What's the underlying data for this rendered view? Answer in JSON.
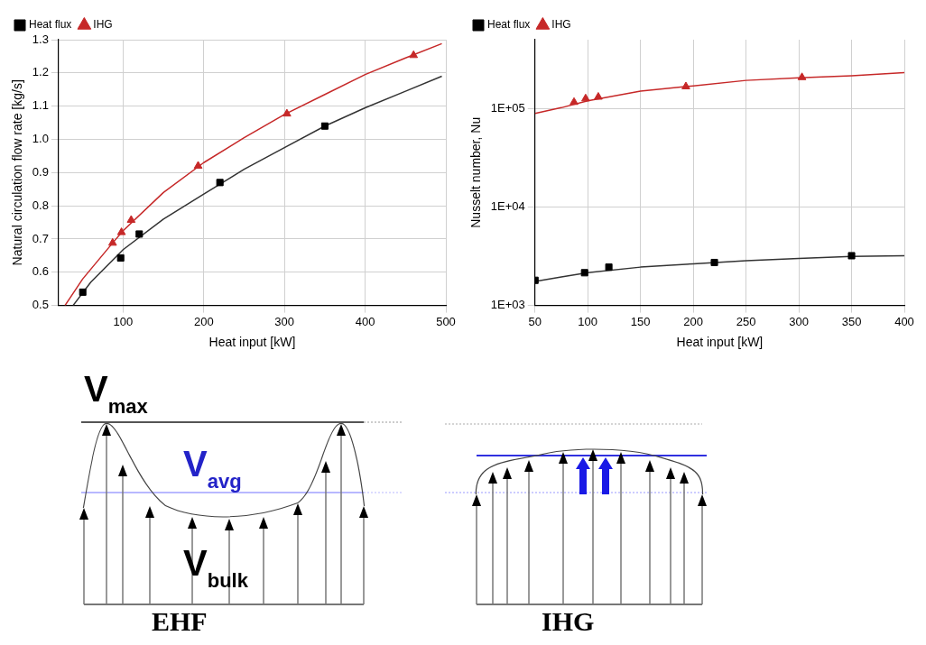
{
  "chart_data": [
    {
      "type": "scatter",
      "xlabel": "Heat input [kW]",
      "ylabel": "Natural circulation flow rate [kg/s]",
      "xlim": [
        20,
        500
      ],
      "xticks": [
        100,
        200,
        300,
        400,
        500
      ],
      "ylim": [
        0.5,
        1.3
      ],
      "yticks": [
        {
          "value": 0.5,
          "label": "0.5"
        },
        {
          "value": 0.6,
          "label": "0.6"
        },
        {
          "value": 0.7,
          "label": "0.7"
        },
        {
          "value": 0.8,
          "label": "0.8"
        },
        {
          "value": 0.9,
          "label": "0.9"
        },
        {
          "value": 1.0,
          "label": "1.0"
        },
        {
          "value": 1.1,
          "label": "1.1"
        },
        {
          "value": 1.2,
          "label": "1.2"
        },
        {
          "value": 1.3,
          "label": "1.3"
        }
      ],
      "grid": true,
      "legend": "top left",
      "series": [
        {
          "name": "Heat flux",
          "type": "scatter",
          "marker": "square",
          "color": "#000000",
          "x": [
            50,
            97,
            120,
            220,
            350
          ],
          "values": [
            0.54,
            0.643,
            0.715,
            0.87,
            1.04
          ]
        },
        {
          "name": "IHG",
          "type": "scatter",
          "marker": "triangle",
          "color": "#c62828",
          "x": [
            87,
            98,
            110,
            193,
            303,
            460
          ],
          "values": [
            0.688,
            0.72,
            0.757,
            0.92,
            1.077,
            1.253
          ]
        },
        {
          "type": "line",
          "color": "#333333",
          "x": [
            38,
            60,
            100,
            150,
            200,
            250,
            300,
            350,
            400,
            450,
            495
          ],
          "values": [
            0.5,
            0.57,
            0.668,
            0.76,
            0.835,
            0.91,
            0.975,
            1.04,
            1.095,
            1.145,
            1.19
          ]
        },
        {
          "type": "line",
          "color": "#c62828",
          "x": [
            28,
            50,
            87,
            100,
            150,
            200,
            250,
            300,
            350,
            400,
            450,
            495
          ],
          "values": [
            0.5,
            0.58,
            0.688,
            0.725,
            0.84,
            0.93,
            1.005,
            1.075,
            1.135,
            1.195,
            1.245,
            1.288
          ]
        }
      ]
    },
    {
      "type": "scatter",
      "xlabel": "Heat input [kW]",
      "ylabel": "Nusselt number, Nu",
      "log": "y",
      "xlim": [
        50,
        400
      ],
      "xticks": [
        50,
        100,
        150,
        200,
        250,
        300,
        350,
        400
      ],
      "ylim": [
        1000,
        500000
      ],
      "yticks": [
        {
          "value": 1000,
          "label": "1E+03"
        },
        {
          "value": 10000,
          "label": "1E+04"
        },
        {
          "value": 100000,
          "label": "1E+05"
        }
      ],
      "grid": true,
      "legend": "top left",
      "series": [
        {
          "name": "Heat flux",
          "type": "scatter",
          "marker": "square",
          "color": "#000000",
          "x": [
            50,
            97,
            120,
            220,
            350
          ],
          "values": [
            1800,
            2150,
            2450,
            2730,
            3200
          ]
        },
        {
          "name": "IHG",
          "type": "scatter",
          "marker": "triangle",
          "color": "#c62828",
          "x": [
            87,
            98,
            110,
            193,
            303
          ],
          "values": [
            116000,
            126000,
            131000,
            167000,
            207000
          ]
        },
        {
          "type": "line",
          "color": "#333333",
          "x": [
            50,
            75,
            100,
            150,
            200,
            250,
            300,
            350,
            400
          ],
          "values": [
            1750,
            1950,
            2150,
            2450,
            2650,
            2850,
            3000,
            3150,
            3200
          ]
        },
        {
          "type": "line",
          "color": "#c62828",
          "x": [
            50,
            75,
            100,
            150,
            200,
            250,
            300,
            350,
            400
          ],
          "values": [
            89000,
            102000,
            120000,
            150000,
            170000,
            193000,
            205000,
            215000,
            231000
          ]
        }
      ]
    },
    {
      "type": "other",
      "title": "EHF",
      "annotations": [
        "V$_{max}$",
        "V$_{avg}$",
        "V$_{bulk}$"
      ]
    },
    {
      "type": "other",
      "title": "IHG"
    }
  ]
}
